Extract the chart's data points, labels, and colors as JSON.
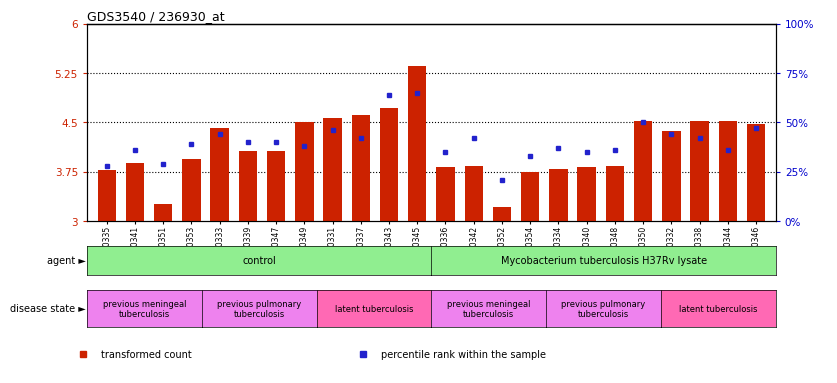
{
  "title": "GDS3540 / 236930_at",
  "samples": [
    "GSM280335",
    "GSM280341",
    "GSM280351",
    "GSM280353",
    "GSM280333",
    "GSM280339",
    "GSM280347",
    "GSM280349",
    "GSM280331",
    "GSM280337",
    "GSM280343",
    "GSM280345",
    "GSM280336",
    "GSM280342",
    "GSM280352",
    "GSM280354",
    "GSM280334",
    "GSM280340",
    "GSM280348",
    "GSM280350",
    "GSM280332",
    "GSM280338",
    "GSM280344",
    "GSM280346"
  ],
  "bar_values": [
    3.78,
    3.88,
    3.27,
    3.95,
    4.42,
    4.07,
    4.07,
    4.5,
    4.57,
    4.62,
    4.72,
    5.35,
    3.82,
    3.84,
    3.22,
    3.75,
    3.8,
    3.82,
    3.84,
    4.52,
    4.37,
    4.52,
    4.52,
    4.47
  ],
  "percentile_values": [
    28,
    36,
    29,
    39,
    44,
    40,
    40,
    38,
    46,
    42,
    64,
    65,
    35,
    42,
    21,
    33,
    37,
    35,
    36,
    50,
    44,
    42,
    36,
    47
  ],
  "ylim_left": [
    3.0,
    6.0
  ],
  "ylim_right": [
    0,
    100
  ],
  "yticks_left": [
    3.0,
    3.75,
    4.5,
    5.25,
    6.0
  ],
  "yticks_right": [
    0,
    25,
    50,
    75,
    100
  ],
  "ytick_labels_left": [
    "3",
    "3.75",
    "4.5",
    "5.25",
    "6"
  ],
  "ytick_labels_right": [
    "0%",
    "25%",
    "50%",
    "75%",
    "100%"
  ],
  "bar_color": "#CC2200",
  "percentile_color": "#2222CC",
  "agent_groups": [
    {
      "label": "control",
      "start": 0,
      "end": 11,
      "color": "#90EE90"
    },
    {
      "label": "Mycobacterium tuberculosis H37Rv lysate",
      "start": 12,
      "end": 23,
      "color": "#90EE90"
    }
  ],
  "disease_groups": [
    {
      "label": "previous meningeal\ntuberculosis",
      "start": 0,
      "end": 3,
      "color": "#EE82EE"
    },
    {
      "label": "previous pulmonary\ntuberculosis",
      "start": 4,
      "end": 7,
      "color": "#EE82EE"
    },
    {
      "label": "latent tuberculosis",
      "start": 8,
      "end": 11,
      "color": "#FF69B4"
    },
    {
      "label": "previous meningeal\ntuberculosis",
      "start": 12,
      "end": 15,
      "color": "#EE82EE"
    },
    {
      "label": "previous pulmonary\ntuberculosis",
      "start": 16,
      "end": 19,
      "color": "#EE82EE"
    },
    {
      "label": "latent tuberculosis",
      "start": 20,
      "end": 23,
      "color": "#FF69B4"
    }
  ],
  "legend_items": [
    {
      "label": "transformed count",
      "color": "#CC2200"
    },
    {
      "label": "percentile rank within the sample",
      "color": "#2222CC"
    }
  ],
  "agent_label": "agent",
  "disease_label": "disease state",
  "background_color": "#FFFFFF",
  "hline_values": [
    3.75,
    4.5,
    5.25
  ],
  "hline_color": "black",
  "hline_style": ":"
}
